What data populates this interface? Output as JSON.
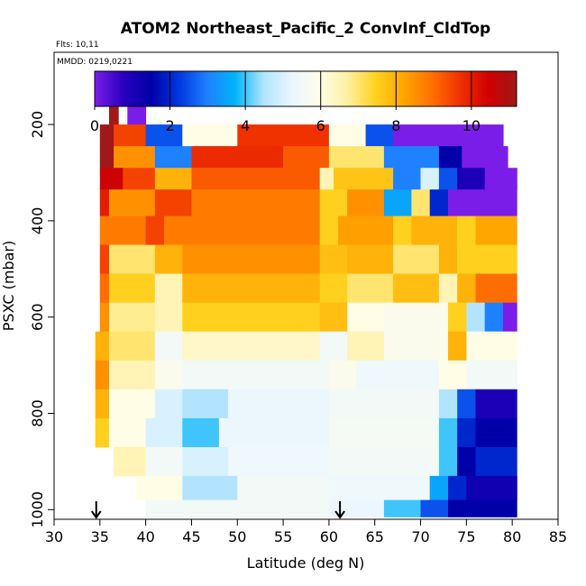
{
  "chart_data": {
    "type": "heatmap",
    "title": "ATOM2 Northeast_Pacific_2 ConvInf_CldTop",
    "flights_label": "Flts: 10,11",
    "dates_label": "MMDD: 0219,0221",
    "xlabel": "Latitude (deg N)",
    "ylabel": "PSXC (mbar)",
    "xlim": [
      30,
      85
    ],
    "ylim": [
      1020,
      50
    ],
    "y_reversed": true,
    "xticks": [
      "30",
      "35",
      "40",
      "45",
      "50",
      "55",
      "60",
      "65",
      "70",
      "75",
      "80",
      "85"
    ],
    "yticks": [
      "200",
      "400",
      "600",
      "800",
      "1000"
    ],
    "colorbar": {
      "min": 0,
      "max": 11.2,
      "ticks": [
        "0",
        "2",
        "4",
        "6",
        "8",
        "10"
      ],
      "colors": [
        "#7b1de8",
        "#2a00c0",
        "#0000a8",
        "#0038e0",
        "#1f80ff",
        "#00b4f8",
        "#b0e4ff",
        "#eaf6ff",
        "#fffde8",
        "#fff0a0",
        "#ffd21e",
        "#ffa500",
        "#ff7000",
        "#f03000",
        "#d00000",
        "#a01818"
      ]
    },
    "arrows_at_latitude": [
      34.6,
      61.2
    ],
    "levels": [
      {
        "p": 180,
        "segments": [
          [
            36,
            37,
            11.2
          ],
          [
            38,
            40,
            0
          ]
        ]
      },
      {
        "p": 220,
        "segments": [
          [
            35,
            36.5,
            11.2
          ],
          [
            36.5,
            40,
            9.5
          ],
          [
            40,
            44,
            2.5
          ],
          [
            44,
            50,
            6
          ],
          [
            50,
            60,
            9.7
          ],
          [
            60,
            64,
            6
          ],
          [
            64,
            67,
            2.5
          ],
          [
            67,
            79,
            0
          ]
        ]
      },
      {
        "p": 270,
        "segments": [
          [
            35,
            36.5,
            11.2
          ],
          [
            36.5,
            41,
            8.5
          ],
          [
            41,
            45,
            3
          ],
          [
            45,
            55,
            9.8
          ],
          [
            55,
            60,
            9.2
          ],
          [
            60,
            66,
            7
          ],
          [
            66,
            72,
            3
          ],
          [
            72,
            74.5,
            1.5
          ],
          [
            74.5,
            79.5,
            0
          ]
        ]
      },
      {
        "p": 310,
        "segments": [
          [
            35,
            37.5,
            10.5
          ],
          [
            37.5,
            41,
            9.5
          ],
          [
            41,
            45,
            8
          ],
          [
            45,
            59,
            9.2
          ],
          [
            59,
            60.5,
            6.5
          ],
          [
            60.5,
            67,
            7.7
          ],
          [
            67,
            70,
            3
          ],
          [
            70,
            72,
            5
          ],
          [
            72,
            74,
            2.5
          ],
          [
            74,
            77,
            1
          ],
          [
            77,
            80.5,
            0
          ]
        ]
      },
      {
        "p": 360,
        "segments": [
          [
            35,
            36,
            10
          ],
          [
            36,
            41,
            8.5
          ],
          [
            41,
            45,
            9.5
          ],
          [
            45,
            59,
            8.8
          ],
          [
            59,
            62,
            7.5
          ],
          [
            62,
            66,
            8.5
          ],
          [
            66,
            69,
            3.5
          ],
          [
            69,
            71,
            7
          ],
          [
            71,
            73,
            2
          ],
          [
            73,
            80.5,
            0
          ]
        ]
      },
      {
        "p": 420,
        "segments": [
          [
            35,
            40,
            8.8
          ],
          [
            40,
            42,
            9.5
          ],
          [
            42,
            59,
            8.8
          ],
          [
            59,
            61,
            7.5
          ],
          [
            61,
            67,
            8.3
          ],
          [
            67,
            69,
            7.5
          ],
          [
            69,
            74,
            8
          ],
          [
            74,
            76,
            7.5
          ],
          [
            76,
            80.5,
            8.2
          ]
        ]
      },
      {
        "p": 480,
        "segments": [
          [
            35,
            36,
            9.5
          ],
          [
            36,
            41,
            7
          ],
          [
            41,
            44,
            8
          ],
          [
            44,
            59,
            8.5
          ],
          [
            59,
            62,
            7.8
          ],
          [
            62,
            67,
            8
          ],
          [
            67,
            72,
            7
          ],
          [
            72,
            74,
            8
          ],
          [
            74,
            80.5,
            7.5
          ]
        ]
      },
      {
        "p": 540,
        "segments": [
          [
            35,
            36,
            9
          ],
          [
            36,
            41,
            7.5
          ],
          [
            41,
            44,
            6.5
          ],
          [
            44,
            59,
            8
          ],
          [
            59,
            62,
            7.5
          ],
          [
            62,
            67,
            7
          ],
          [
            67,
            72,
            7.8
          ],
          [
            72,
            74,
            6.5
          ],
          [
            74,
            76,
            8
          ],
          [
            76,
            80.5,
            9
          ]
        ]
      },
      {
        "p": 600,
        "segments": [
          [
            35,
            36,
            8.5
          ],
          [
            36,
            41,
            6.8
          ],
          [
            41,
            44,
            6.5
          ],
          [
            44,
            59,
            7.5
          ],
          [
            59,
            62,
            7.8
          ],
          [
            62,
            66,
            6
          ],
          [
            66,
            73,
            5.8
          ],
          [
            73,
            75,
            7.5
          ],
          [
            75,
            77,
            4.5
          ],
          [
            77,
            79,
            3
          ],
          [
            79,
            80.5,
            0
          ]
        ]
      },
      {
        "p": 660,
        "segments": [
          [
            34.5,
            36,
            8
          ],
          [
            36,
            41,
            7
          ],
          [
            41,
            44,
            5.5
          ],
          [
            44,
            59,
            6.3
          ],
          [
            59,
            62,
            5.5
          ],
          [
            62,
            66,
            6.5
          ],
          [
            66,
            73,
            5.8
          ],
          [
            73,
            75,
            8
          ],
          [
            75,
            80.5,
            6
          ]
        ]
      },
      {
        "p": 720,
        "segments": [
          [
            34.5,
            36,
            8.5
          ],
          [
            36,
            41,
            6.5
          ],
          [
            41,
            44,
            5.8
          ],
          [
            44,
            60,
            5.5
          ],
          [
            60,
            63,
            5.8
          ],
          [
            63,
            72,
            5.4
          ],
          [
            72,
            75,
            6
          ],
          [
            75,
            80.5,
            5.5
          ]
        ]
      },
      {
        "p": 780,
        "segments": [
          [
            34.5,
            36,
            8
          ],
          [
            36,
            41,
            6
          ],
          [
            41,
            44,
            5
          ],
          [
            44,
            49,
            4.5
          ],
          [
            49,
            60,
            5.3
          ],
          [
            60,
            72,
            5.5
          ],
          [
            72,
            74,
            4.5
          ],
          [
            74,
            76,
            2.5
          ],
          [
            76,
            80.5,
            1
          ]
        ]
      },
      {
        "p": 840,
        "segments": [
          [
            34.5,
            36,
            7.5
          ],
          [
            36,
            40,
            6
          ],
          [
            40,
            44,
            5
          ],
          [
            44,
            48,
            4
          ],
          [
            48,
            60,
            5.3
          ],
          [
            60,
            72,
            5.6
          ],
          [
            72,
            74,
            4
          ],
          [
            74,
            76,
            2
          ],
          [
            76,
            80.5,
            1.5
          ]
        ]
      },
      {
        "p": 900,
        "segments": [
          [
            36.5,
            40,
            6.5
          ],
          [
            40,
            44,
            5.5
          ],
          [
            44,
            49,
            5
          ],
          [
            49,
            60,
            5.4
          ],
          [
            60,
            72,
            5.5
          ],
          [
            72,
            74,
            4
          ],
          [
            74,
            76,
            1.5
          ],
          [
            76,
            80.5,
            2
          ]
        ]
      },
      {
        "p": 960,
        "segments": [
          [
            39,
            44,
            6
          ],
          [
            44,
            50,
            4.5
          ],
          [
            50,
            60,
            5.5
          ],
          [
            60,
            71,
            5.4
          ],
          [
            71,
            73,
            3.5
          ],
          [
            73,
            75,
            2
          ],
          [
            75,
            80.5,
            1.2
          ]
        ]
      },
      {
        "p": 1000,
        "segments": [
          [
            40,
            60,
            5.5
          ],
          [
            60,
            66,
            5.3
          ],
          [
            66,
            70,
            4
          ],
          [
            70,
            73,
            2.5
          ],
          [
            73,
            80.5,
            1.5
          ]
        ]
      }
    ]
  }
}
